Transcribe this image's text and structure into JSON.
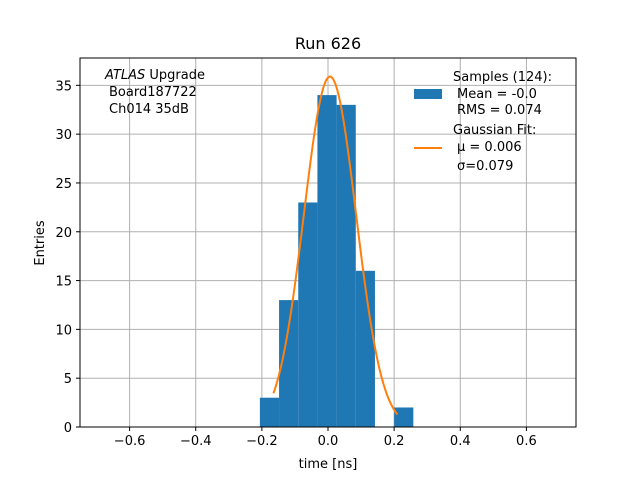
{
  "chart_data": {
    "type": "bar",
    "title": "Run 626",
    "xlabel": "time [ns]",
    "ylabel": "Entries",
    "xlim": [
      -0.75,
      0.75
    ],
    "ylim": [
      0,
      37.8
    ],
    "grid": true,
    "legend_placement": "top-right",
    "xticks": [
      {
        "value": -0.6,
        "label": "−0.6"
      },
      {
        "value": -0.4,
        "label": "−0.4"
      },
      {
        "value": -0.2,
        "label": "−0.2"
      },
      {
        "value": 0.0,
        "label": "0.0"
      },
      {
        "value": 0.2,
        "label": "0.2"
      },
      {
        "value": 0.4,
        "label": "0.4"
      },
      {
        "value": 0.6,
        "label": "0.6"
      }
    ],
    "yticks": [
      {
        "value": 0,
        "label": "0"
      },
      {
        "value": 5,
        "label": "5"
      },
      {
        "value": 10,
        "label": "10"
      },
      {
        "value": 15,
        "label": "15"
      },
      {
        "value": 20,
        "label": "20"
      },
      {
        "value": 25,
        "label": "25"
      },
      {
        "value": 30,
        "label": "30"
      },
      {
        "value": 35,
        "label": "35"
      }
    ],
    "histogram": {
      "name": "Samples (124):",
      "color": "#1f77b4",
      "bins": [
        {
          "x0": -0.206,
          "x1": -0.148,
          "count": 3
        },
        {
          "x0": -0.148,
          "x1": -0.09,
          "count": 13
        },
        {
          "x0": -0.09,
          "x1": -0.032,
          "count": 23
        },
        {
          "x0": -0.032,
          "x1": 0.026,
          "count": 34
        },
        {
          "x0": 0.026,
          "x1": 0.084,
          "count": 33
        },
        {
          "x0": 0.084,
          "x1": 0.142,
          "count": 16
        },
        {
          "x0": 0.142,
          "x1": 0.2,
          "count": 0
        },
        {
          "x0": 0.2,
          "x1": 0.258,
          "count": 2
        }
      ]
    },
    "fit": {
      "name": "Gaussian Fit:",
      "color": "#ff7f0e",
      "amplitude": 35.9,
      "mu": 0.006,
      "sigma": 0.079,
      "x_range": [
        -0.165,
        0.21
      ]
    },
    "legend": [
      {
        "series": "histogram",
        "lines": [
          "Samples (124):",
          "Mean = -0.0",
          "RMS = 0.074"
        ]
      },
      {
        "series": "fit",
        "lines": [
          "Gaussian Fit:",
          "μ = 0.006",
          "σ=0.079"
        ]
      }
    ],
    "annotation": {
      "italic": "ATLAS",
      "rest": " Upgrade",
      "line2": "Board187722",
      "line3": "Ch014 35dB"
    }
  }
}
